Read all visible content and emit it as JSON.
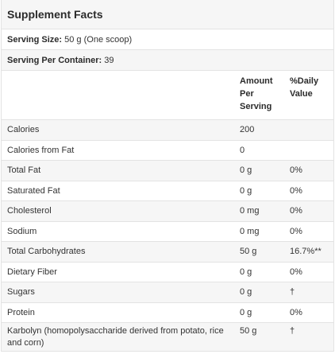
{
  "title": "Supplement Facts",
  "serving_size": {
    "label": "Serving Size:",
    "value": "50 g (One scoop)"
  },
  "servings_per_container": {
    "label": "Serving Per Container:",
    "value": "39"
  },
  "columns": {
    "amount": "Amount Per Serving",
    "daily_value": "%Daily Value"
  },
  "rows": [
    {
      "name": "Calories",
      "amount": "200",
      "dv": ""
    },
    {
      "name": "Calories from Fat",
      "amount": "0",
      "dv": ""
    },
    {
      "name": "Total Fat",
      "amount": "0 g",
      "dv": "0%"
    },
    {
      "name": "Saturated Fat",
      "amount": "0 g",
      "dv": "0%"
    },
    {
      "name": "Cholesterol",
      "amount": "0 mg",
      "dv": "0%"
    },
    {
      "name": "Sodium",
      "amount": "0 mg",
      "dv": "0%"
    },
    {
      "name": "Total Carbohydrates",
      "amount": "50 g",
      "dv": "16.7%**"
    },
    {
      "name": "Dietary Fiber",
      "amount": "0 g",
      "dv": "0%"
    },
    {
      "name": "Sugars",
      "amount": "0 g",
      "dv": "†"
    },
    {
      "name": "Protein",
      "amount": "0 g",
      "dv": "0%"
    },
    {
      "name": "Karbolyn (homopolysaccharide derived from potato, rice and corn)",
      "amount": "50 g",
      "dv": "†"
    }
  ]
}
